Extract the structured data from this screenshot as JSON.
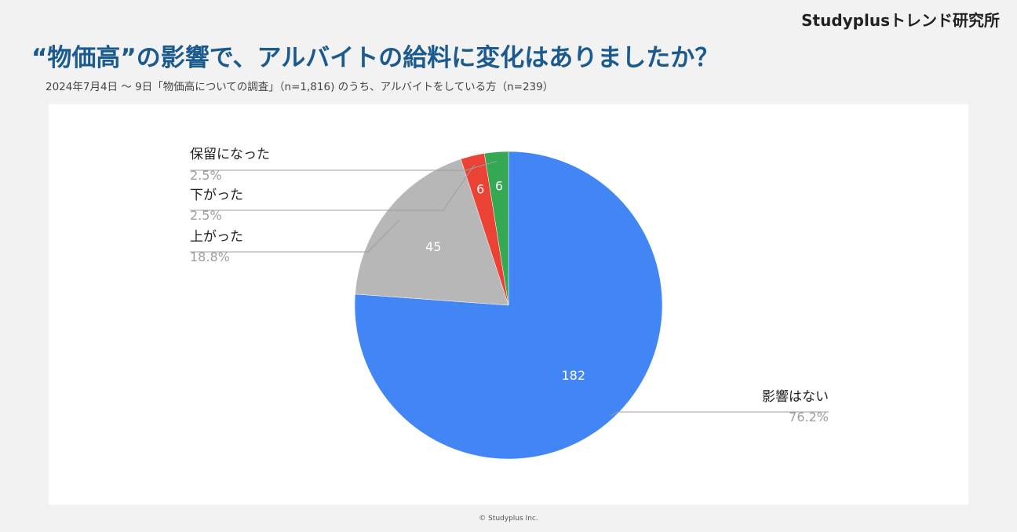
{
  "brand": "Studyplusトレンド研究所",
  "title": "“物価高”の影響で、アルバイトの給料に変化はありましたか？",
  "subtitle": "2024年7月4日 〜 9日「物価高についての調査」（n=1,816) のうち、アルバイトをしている方（n=239）",
  "footer": "© Studyplus Inc.",
  "chart_data": {
    "type": "pie",
    "start_angle_deg": 0,
    "direction": "clockwise",
    "slices": [
      {
        "label": "影響はない",
        "value": 182,
        "percent_label": "76.2%",
        "color": "#4285f4"
      },
      {
        "label": "上がった",
        "value": 45,
        "percent_label": "18.8%",
        "color": "#b7b7b7"
      },
      {
        "label": "下がった",
        "value": 6,
        "percent_label": "2.5%",
        "color": "#ea4335"
      },
      {
        "label": "保留になった",
        "value": 6,
        "percent_label": "2.5%",
        "color": "#34a853"
      }
    ]
  }
}
